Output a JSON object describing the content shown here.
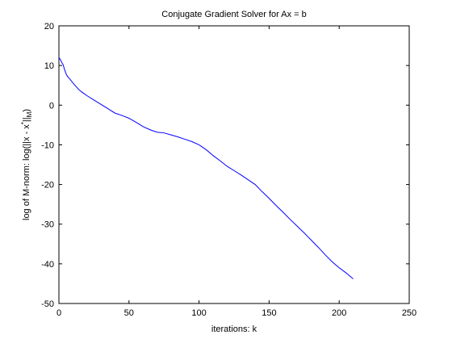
{
  "chart_data": {
    "type": "line",
    "title": "Conjugate Gradient Solver for Ax = b",
    "xlabel": "iterations: k",
    "ylabel": {
      "prefix": "log of M-norm: log(||x - x",
      "superscript": "*",
      "middle": "||",
      "subscript": "M",
      "suffix": ")"
    },
    "xlim": [
      0,
      250
    ],
    "ylim": [
      -50,
      20
    ],
    "xticks": [
      "0",
      "50",
      "100",
      "150",
      "200",
      "250"
    ],
    "yticks": [
      "20",
      "10",
      "0",
      "-10",
      "-20",
      "-30",
      "-40",
      "-50"
    ],
    "xtick_values": [
      0,
      50,
      100,
      150,
      200,
      250
    ],
    "ytick_values": [
      20,
      10,
      0,
      -10,
      -20,
      -30,
      -40,
      -50
    ],
    "grid": false,
    "series": [
      {
        "color": "#0000ff",
        "x": [
          0,
          1,
          2,
          3,
          4,
          5,
          6,
          8,
          10,
          12,
          14,
          16,
          18,
          20,
          25,
          30,
          35,
          40,
          45,
          50,
          55,
          60,
          65,
          70,
          75,
          80,
          85,
          90,
          95,
          100,
          105,
          110,
          115,
          120,
          125,
          130,
          135,
          140,
          145,
          150,
          155,
          160,
          165,
          170,
          175,
          180,
          185,
          190,
          195,
          200,
          205,
          210
        ],
        "y": [
          12,
          11.5,
          10.8,
          10.2,
          9,
          8,
          7.3,
          6.5,
          5.6,
          4.8,
          4.0,
          3.4,
          2.9,
          2.4,
          1.3,
          0.2,
          -0.9,
          -2.0,
          -2.6,
          -3.3,
          -4.3,
          -5.4,
          -6.2,
          -6.8,
          -7.0,
          -7.5,
          -8.0,
          -8.6,
          -9.2,
          -10.0,
          -11.2,
          -12.7,
          -14.0,
          -15.4,
          -16.5,
          -17.6,
          -18.8,
          -20.0,
          -21.8,
          -23.5,
          -25.3,
          -27.0,
          -28.8,
          -30.5,
          -32.2,
          -34.0,
          -35.8,
          -37.7,
          -39.5,
          -41.0,
          -42.3,
          -43.8
        ]
      }
    ]
  }
}
